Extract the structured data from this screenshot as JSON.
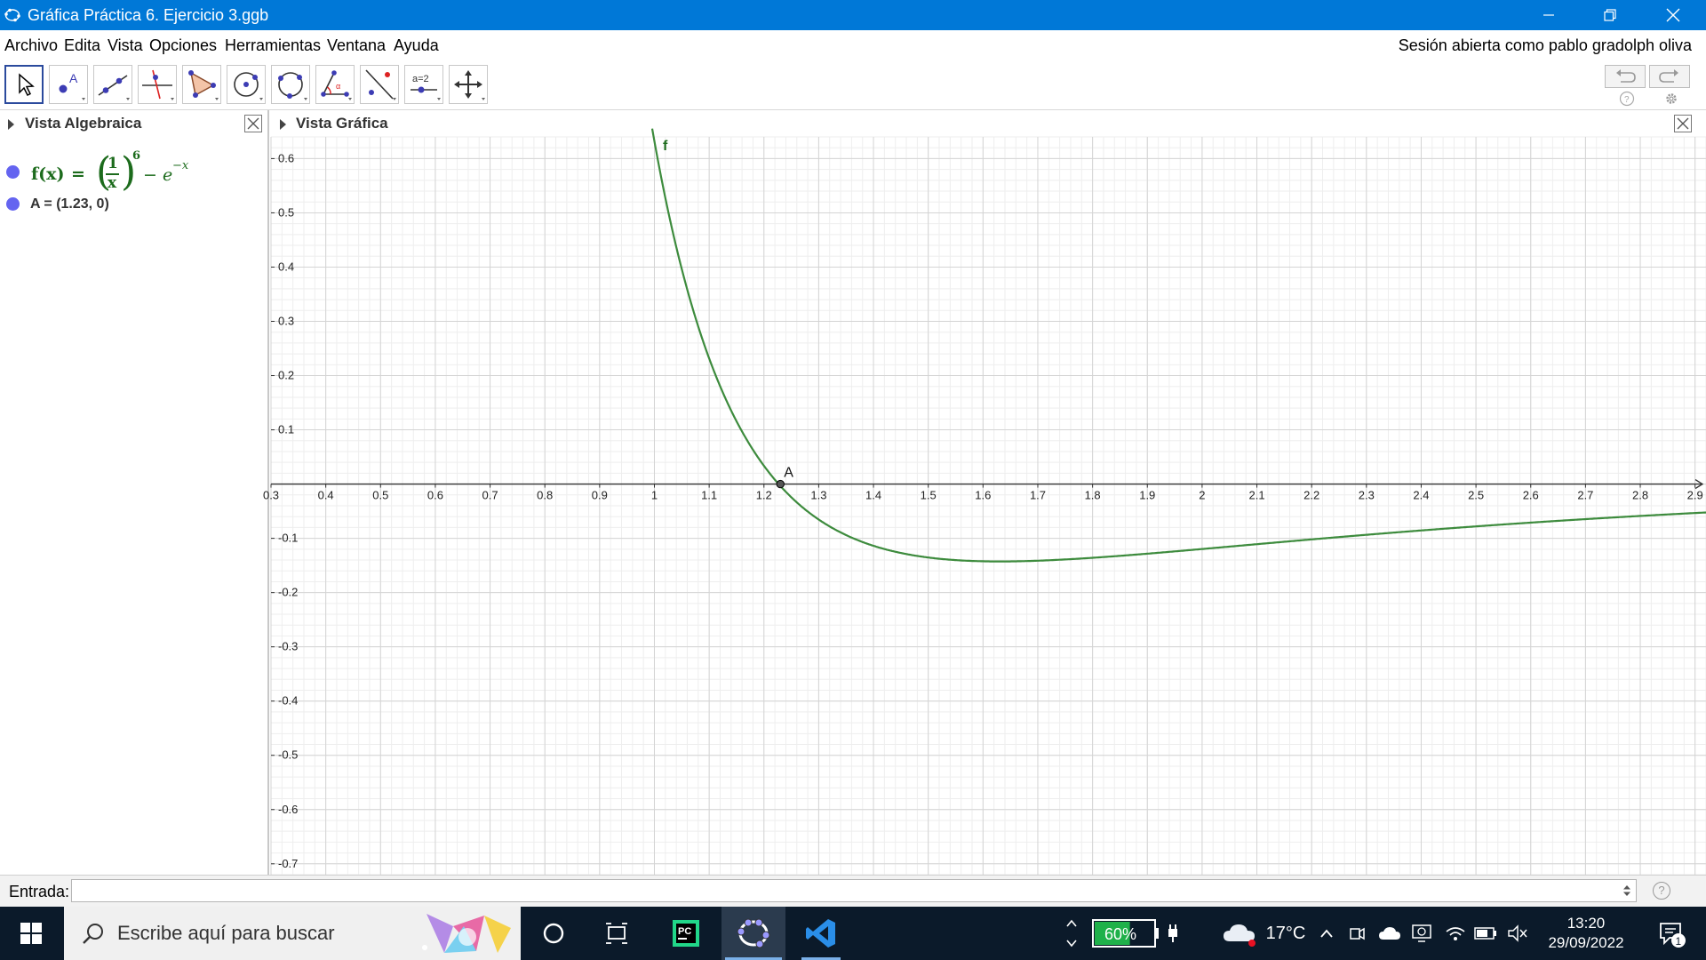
{
  "window": {
    "title": "Gráfica Práctica 6. Ejercicio 3.ggb",
    "minimize_icon": "minimize-icon",
    "maximize_icon": "restore-icon",
    "close_icon": "close-icon"
  },
  "menu": {
    "items": [
      "Archivo",
      "Edita",
      "Vista",
      "Opciones",
      "Herramientas",
      "Ventana",
      "Ayuda"
    ],
    "session": "Sesión abierta como pablo gradolph oliva"
  },
  "toolbar": {
    "tools": [
      {
        "icon": "move-arrow-icon",
        "active": true
      },
      {
        "icon": "point-icon",
        "active": false
      },
      {
        "icon": "line-icon",
        "active": false
      },
      {
        "icon": "perpendicular-line-icon",
        "active": false
      },
      {
        "icon": "polygon-icon",
        "active": false
      },
      {
        "icon": "circle-center-point-icon",
        "active": false
      },
      {
        "icon": "circle-three-points-icon",
        "active": false
      },
      {
        "icon": "angle-icon",
        "active": false
      },
      {
        "icon": "reflect-about-line-icon",
        "active": false
      },
      {
        "icon": "slider-icon",
        "active": false
      },
      {
        "icon": "move-graphics-view-icon",
        "active": false
      }
    ],
    "slider_label": "a=2",
    "undo_icon": "undo-icon",
    "redo_icon": "redo-icon",
    "help_icon": "help-icon",
    "settings_icon": "gear-icon"
  },
  "algebra_view": {
    "title": "Vista Algebraica",
    "function": {
      "name": "f(x)",
      "eq": "=",
      "numerator": "1",
      "denominator": "x",
      "exponent": "6",
      "minus": "−",
      "base": "e",
      "neg_exponent": "−x",
      "color": "#1c6b1c"
    },
    "point": {
      "text": "A = (1.23, 0)",
      "color": "#6464f0"
    }
  },
  "graphics_view": {
    "title": "Vista Gráfica",
    "function_label": "f",
    "point_label": "A"
  },
  "chart_data": {
    "type": "line",
    "title": "",
    "xlabel": "",
    "ylabel": "",
    "xlim": [
      0.3,
      2.92
    ],
    "ylim": [
      -0.72,
      0.64
    ],
    "x_ticks": [
      0.3,
      0.4,
      0.5,
      0.6,
      0.7,
      0.8,
      0.9,
      1,
      1.1,
      1.2,
      1.3,
      1.4,
      1.5,
      1.6,
      1.7,
      1.8,
      1.9,
      2,
      2.1,
      2.2,
      2.3,
      2.4,
      2.5,
      2.6,
      2.7,
      2.8,
      2.9
    ],
    "x_tick_labels": [
      "0.3",
      "0.4",
      "0.5",
      "0.6",
      "0.7",
      "0.8",
      "0.9",
      "1",
      "1.1",
      "1.2",
      "1.3",
      "1.4",
      "1.5",
      "1.6",
      "1.7",
      "1.8",
      "1.9",
      "2",
      "2.1",
      "2.2",
      "2.3",
      "2.4",
      "2.5",
      "2.6",
      "2.7",
      "2.8",
      "2.9"
    ],
    "y_ticks": [
      0.6,
      0.5,
      0.4,
      0.3,
      0.2,
      0.1,
      -0.1,
      -0.2,
      -0.3,
      -0.4,
      -0.5,
      -0.6,
      -0.7
    ],
    "y_tick_labels": [
      "0.6",
      "0.5",
      "0.4",
      "0.3",
      "0.2",
      "0.1",
      "-0.1",
      "-0.2",
      "-0.3",
      "-0.4",
      "-0.5",
      "-0.6",
      "-0.7"
    ],
    "grid": true,
    "series": [
      {
        "name": "f",
        "color": "#3d8b3d",
        "expression": "(1/x)^6 - e^(-x)",
        "points": [
          [
            1.0,
            0.632
          ],
          [
            1.05,
            0.397
          ],
          [
            1.1,
            0.232
          ],
          [
            1.15,
            0.115
          ],
          [
            1.2,
            0.034
          ],
          [
            1.23,
            0.0
          ],
          [
            1.3,
            -0.065
          ],
          [
            1.4,
            -0.113
          ],
          [
            1.5,
            -0.136
          ],
          [
            1.6,
            -0.142
          ],
          [
            1.7,
            -0.141
          ],
          [
            1.8,
            -0.136
          ],
          [
            1.9,
            -0.129
          ],
          [
            2.0,
            -0.12
          ],
          [
            2.2,
            -0.103
          ],
          [
            2.4,
            -0.087
          ],
          [
            2.6,
            -0.072
          ],
          [
            2.8,
            -0.059
          ],
          [
            2.92,
            -0.052
          ]
        ]
      }
    ],
    "points": [
      {
        "name": "A",
        "x": 1.23,
        "y": 0
      }
    ]
  },
  "input_bar": {
    "label": "Entrada:",
    "value": "",
    "help_icon": "help-icon"
  },
  "taskbar": {
    "start_icon": "windows-start-icon",
    "search_placeholder": "Escribe aquí para buscar",
    "search_icon": "search-icon",
    "apps": [
      "cortana-icon",
      "task-view-icon",
      "pycharm-icon",
      "geogebra-icon",
      "vscode-icon"
    ],
    "battery": "60%",
    "temperature": "17°C",
    "time": "13:20",
    "date": "29/09/2022",
    "notifications": "1"
  }
}
